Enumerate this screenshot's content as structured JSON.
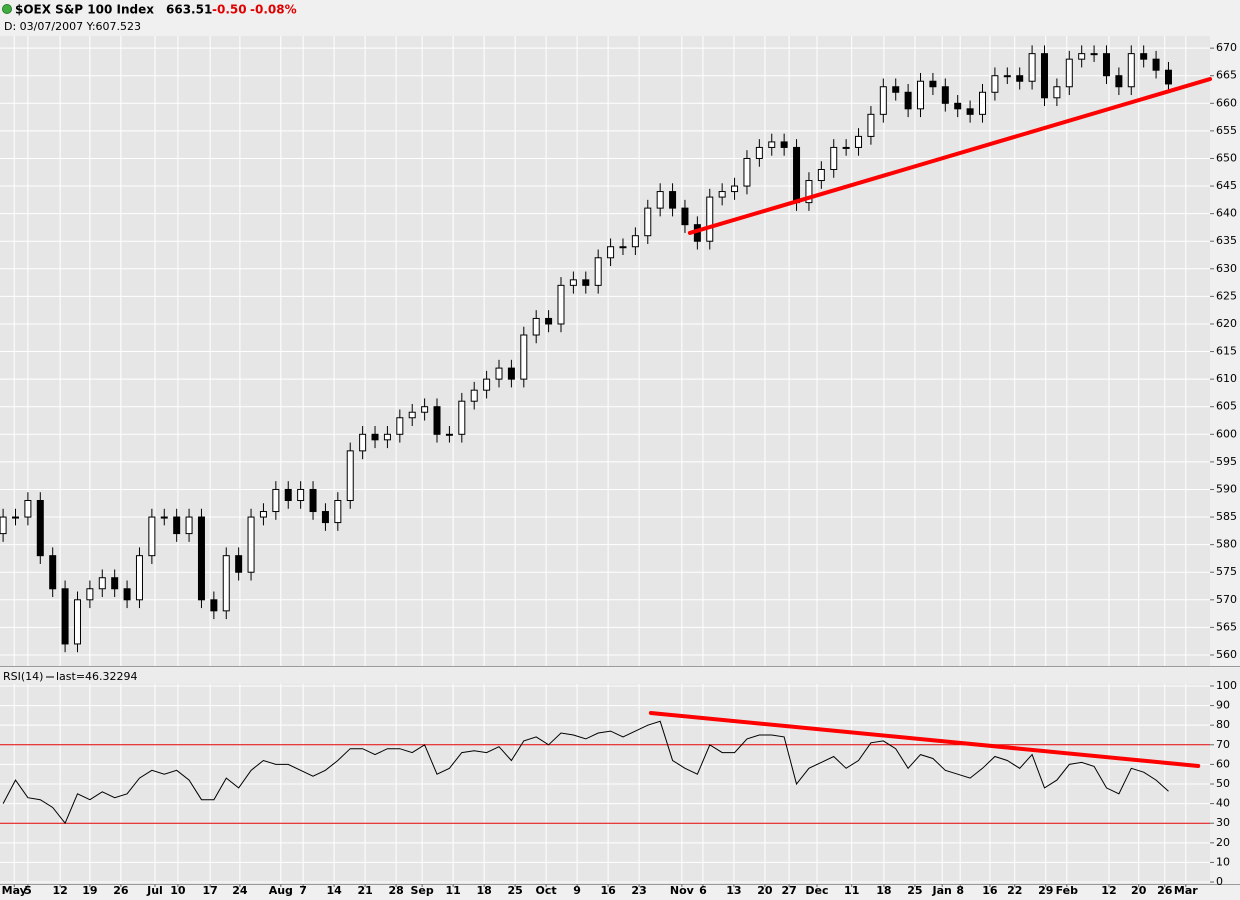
{
  "chart_data": [
    {
      "type": "candlestick",
      "title": "$OEX S&P 100 Index",
      "last": 663.51,
      "change": {
        "value": -0.5,
        "label": "-0.50"
      },
      "change_pct": {
        "value": -0.08,
        "label": "-0.08%"
      },
      "cursor_readout": "D: 03/07/2007 Y:607.523",
      "up_color": "#ffffff",
      "down_color": "#000000",
      "x": [
        0,
        2,
        4,
        6,
        8,
        10,
        12,
        14,
        16,
        18,
        20,
        22,
        24,
        26,
        28,
        30,
        32,
        34,
        36,
        38,
        40,
        42,
        44,
        46,
        48,
        50,
        52,
        54,
        56,
        58,
        60,
        62,
        64,
        66,
        68,
        70,
        72,
        74,
        76,
        78,
        80,
        82,
        84,
        86,
        88,
        90,
        92,
        94,
        96,
        98,
        100,
        102,
        104,
        106,
        108,
        110,
        112,
        114,
        116,
        118,
        120,
        122,
        124,
        126,
        128,
        130,
        132,
        134,
        136,
        138,
        140,
        142,
        144,
        146,
        148,
        150,
        152,
        154,
        156,
        158,
        160,
        162,
        164,
        166,
        168,
        170,
        172,
        174,
        176,
        178,
        180,
        182,
        184,
        186,
        188
      ],
      "open": [
        582,
        585,
        585,
        588,
        578,
        572,
        562,
        570,
        572,
        574,
        572,
        570,
        578,
        585,
        585,
        582,
        585,
        570,
        568,
        578,
        575,
        585,
        586,
        590,
        588,
        590,
        586,
        584,
        588,
        597,
        600,
        599,
        600,
        603,
        604,
        605,
        600,
        600,
        606,
        608,
        610,
        612,
        610,
        618,
        621,
        620,
        627,
        628,
        627,
        632,
        634,
        634,
        636,
        641,
        644,
        641,
        638,
        635,
        643,
        644,
        645,
        650,
        652,
        653,
        652,
        642,
        646,
        648,
        652,
        652,
        654,
        658,
        663,
        662,
        659,
        664,
        663,
        660,
        659,
        658,
        662,
        665,
        665,
        664,
        669,
        661,
        663,
        668,
        669,
        669,
        665,
        663,
        669,
        668,
        666
      ],
      "high": [
        586.5,
        586.5,
        589.5,
        589.5,
        579.5,
        573.5,
        571.5,
        573.5,
        575.5,
        575.5,
        573.5,
        579.5,
        586.5,
        586.5,
        586.5,
        586.5,
        586.5,
        571.5,
        579.5,
        579.5,
        586.5,
        587.5,
        591.5,
        591.5,
        591.5,
        591.5,
        587.5,
        589.5,
        598.5,
        601.5,
        601.5,
        601.5,
        604.5,
        605.5,
        606.5,
        606.5,
        601.5,
        607.5,
        609.5,
        611.5,
        613.5,
        613.5,
        619.5,
        622.5,
        622.5,
        628.5,
        629.5,
        629.5,
        633.5,
        635.5,
        635.5,
        637.5,
        642.5,
        645.5,
        645.5,
        642.5,
        639.5,
        644.5,
        645.5,
        646.5,
        651.5,
        653.5,
        654.5,
        654.5,
        653.5,
        647.5,
        649.5,
        653.5,
        653.5,
        655.5,
        659.5,
        664.5,
        664.5,
        663.5,
        665.5,
        665.5,
        664.5,
        661.5,
        660.5,
        663.5,
        666.5,
        666.5,
        666.5,
        670.5,
        670.5,
        664.5,
        669.5,
        670.5,
        670.5,
        670.5,
        666.5,
        670.5,
        670.5,
        669.5,
        667.5
      ],
      "low": [
        580.5,
        583.5,
        583.5,
        576.5,
        570.5,
        560.5,
        560.5,
        568.5,
        570.5,
        570.5,
        568.5,
        568.5,
        576.5,
        583.5,
        580.5,
        580.5,
        568.5,
        566.5,
        566.5,
        573.5,
        573.5,
        583.5,
        584.5,
        586.5,
        586.5,
        584.5,
        582.5,
        582.5,
        586.5,
        595.5,
        597.5,
        597.5,
        598.5,
        601.5,
        602.5,
        598.5,
        598.5,
        598.5,
        604.5,
        606.5,
        608.5,
        608.5,
        608.5,
        616.5,
        618.5,
        618.5,
        625.5,
        625.5,
        625.5,
        630.5,
        632.5,
        632.5,
        634.5,
        639.5,
        639.5,
        636.5,
        633.5,
        633.5,
        641.5,
        642.5,
        643.5,
        648.5,
        650.5,
        650.5,
        640.5,
        640.5,
        644.5,
        646.5,
        650.5,
        650.5,
        652.5,
        656.5,
        660.5,
        657.5,
        657.5,
        661.5,
        658.5,
        657.5,
        656.5,
        656.5,
        660.5,
        663.5,
        662.5,
        662.5,
        659.5,
        659.5,
        661.5,
        666.5,
        667.5,
        663.5,
        661.5,
        661.5,
        666.5,
        664.5,
        662.01
      ],
      "close": [
        585,
        585,
        588,
        578,
        572,
        562,
        570,
        572,
        574,
        572,
        570,
        578,
        585,
        585,
        582,
        585,
        570,
        568,
        578,
        575,
        585,
        586,
        590,
        588,
        590,
        586,
        584,
        588,
        597,
        600,
        599,
        600,
        603,
        604,
        605,
        600,
        600,
        606,
        608,
        610,
        612,
        610,
        618,
        621,
        620,
        627,
        628,
        627,
        632,
        634,
        634,
        636,
        641,
        644,
        641,
        638,
        635,
        643,
        644,
        645,
        650,
        652,
        653,
        652,
        642,
        646,
        648,
        652,
        652,
        654,
        658,
        663,
        662,
        659,
        664,
        663,
        660,
        659,
        658,
        662,
        665,
        665,
        664,
        669,
        661,
        663,
        668,
        669,
        669,
        665,
        663,
        669,
        668,
        666,
        663.51
      ],
      "xlim": [
        -0.5,
        194.7
      ],
      "ylim": [
        558,
        672.2
      ],
      "yticks": [
        560,
        565,
        570,
        575,
        580,
        585,
        590,
        595,
        600,
        605,
        610,
        615,
        620,
        625,
        630,
        635,
        640,
        645,
        650,
        655,
        660,
        665,
        670
      ],
      "grid": true,
      "trendlines": [
        {
          "x": [
            110.8,
            194.7
          ],
          "y": [
            636.5,
            664.4
          ],
          "color": "#ff0000"
        }
      ]
    },
    {
      "type": "line",
      "title": "RSI(14)",
      "subtitle": "last=46.32294",
      "color": "#000000",
      "x": [
        0,
        2,
        4,
        6,
        8,
        10,
        12,
        14,
        16,
        18,
        20,
        22,
        24,
        26,
        28,
        30,
        32,
        34,
        36,
        38,
        40,
        42,
        44,
        46,
        48,
        50,
        52,
        54,
        56,
        58,
        60,
        62,
        64,
        66,
        68,
        70,
        72,
        74,
        76,
        78,
        80,
        82,
        84,
        86,
        88,
        90,
        92,
        94,
        96,
        98,
        100,
        102,
        104,
        106,
        108,
        110,
        112,
        114,
        116,
        118,
        120,
        122,
        124,
        126,
        128,
        130,
        132,
        134,
        136,
        138,
        140,
        142,
        144,
        146,
        148,
        150,
        152,
        154,
        156,
        158,
        160,
        162,
        164,
        166,
        168,
        170,
        172,
        174,
        176,
        178,
        180,
        182,
        184,
        186,
        188
      ],
      "values": [
        40,
        52,
        43,
        42,
        38,
        30,
        45,
        42,
        46,
        43,
        45,
        53,
        57,
        55,
        57,
        52,
        42,
        42,
        53,
        48,
        57,
        62,
        60,
        60,
        57,
        54,
        57,
        62,
        68,
        68,
        65,
        68,
        68,
        66,
        70,
        55,
        58,
        66,
        67,
        66,
        69,
        62,
        72,
        74,
        70,
        76,
        75,
        73,
        76,
        77,
        74,
        77,
        80,
        82,
        62,
        58,
        55,
        70,
        66,
        66,
        73,
        75,
        75,
        74,
        50,
        58,
        61,
        64,
        58,
        62,
        71,
        72,
        68,
        58,
        65,
        63,
        57,
        55,
        53,
        58,
        64,
        62,
        58,
        65,
        48,
        52,
        60,
        61,
        59,
        48,
        45,
        58,
        56,
        52,
        46.32
      ],
      "xlim": [
        -0.5,
        194.7
      ],
      "ylim": [
        -1,
        101
      ],
      "yticks": [
        0,
        10,
        20,
        30,
        40,
        50,
        60,
        70,
        80,
        90,
        100
      ],
      "hlines": [
        70,
        30
      ],
      "hline_color": "#e00000",
      "grid": true,
      "trendlines": [
        {
          "x": [
            104.5,
            192.8
          ],
          "y": [
            86.2,
            59.2
          ],
          "color": "#ff0000"
        }
      ],
      "xticks": [
        {
          "value": 1.8,
          "label": "May"
        },
        {
          "value": 4,
          "label": "5"
        },
        {
          "value": 9.2,
          "label": "12"
        },
        {
          "value": 14,
          "label": "19"
        },
        {
          "value": 19,
          "label": "26"
        },
        {
          "value": 24.5,
          "label": "Jul"
        },
        {
          "value": 28.2,
          "label": "10"
        },
        {
          "value": 33.4,
          "label": "17"
        },
        {
          "value": 38.2,
          "label": "24"
        },
        {
          "value": 44.8,
          "label": "Aug"
        },
        {
          "value": 48.4,
          "label": "7"
        },
        {
          "value": 53.4,
          "label": "14"
        },
        {
          "value": 58.4,
          "label": "21"
        },
        {
          "value": 63.4,
          "label": "28"
        },
        {
          "value": 67.6,
          "label": "Sep"
        },
        {
          "value": 72.6,
          "label": "11"
        },
        {
          "value": 77.6,
          "label": "18"
        },
        {
          "value": 82.6,
          "label": "25"
        },
        {
          "value": 87.6,
          "label": "Oct"
        },
        {
          "value": 92.6,
          "label": "9"
        },
        {
          "value": 97.6,
          "label": "16"
        },
        {
          "value": 102.6,
          "label": "23"
        },
        {
          "value": 109.5,
          "label": "Nov"
        },
        {
          "value": 112.9,
          "label": "6"
        },
        {
          "value": 117.9,
          "label": "13"
        },
        {
          "value": 122.9,
          "label": "20"
        },
        {
          "value": 126.8,
          "label": "27"
        },
        {
          "value": 131.3,
          "label": "Dec"
        },
        {
          "value": 136.9,
          "label": "11"
        },
        {
          "value": 142.1,
          "label": "18"
        },
        {
          "value": 147.1,
          "label": "25"
        },
        {
          "value": 151.5,
          "label": "Jan"
        },
        {
          "value": 154.4,
          "label": "8"
        },
        {
          "value": 159.2,
          "label": "16"
        },
        {
          "value": 163.2,
          "label": "22"
        },
        {
          "value": 168.2,
          "label": "29"
        },
        {
          "value": 171.6,
          "label": "Feb"
        },
        {
          "value": 178.4,
          "label": "12"
        },
        {
          "value": 183.2,
          "label": "20"
        },
        {
          "value": 187.4,
          "label": "26"
        },
        {
          "value": 190.8,
          "label": "Mar"
        }
      ]
    }
  ]
}
